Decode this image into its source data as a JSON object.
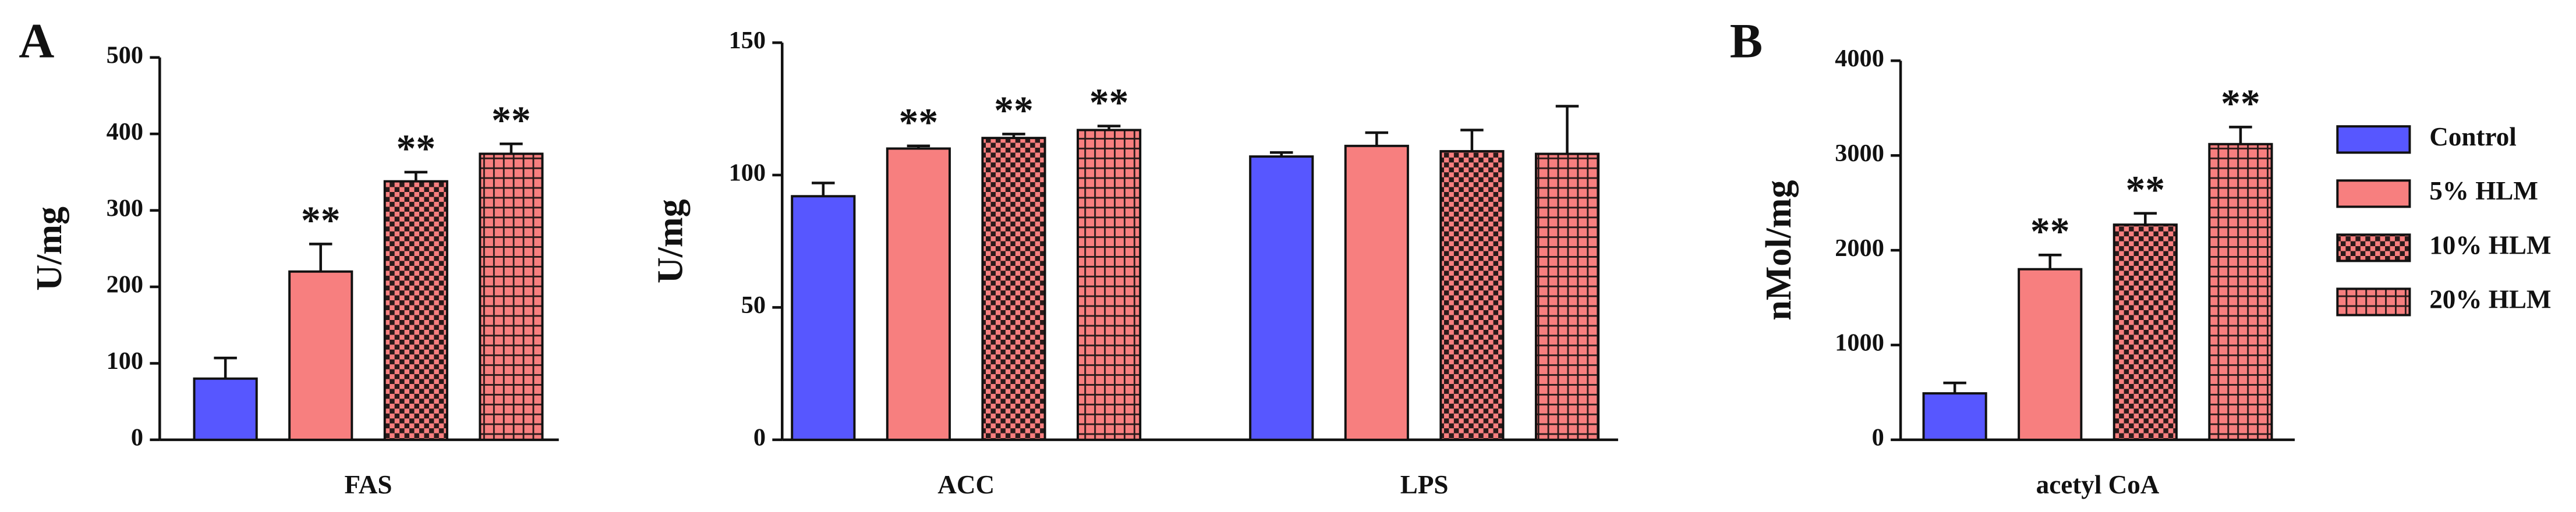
{
  "chart_data": [
    {
      "type": "bar",
      "panel_label": "A",
      "ylabel": "U/mg",
      "categories": [
        "FAS"
      ],
      "ylim": [
        0,
        500
      ],
      "yticks": [
        0,
        100,
        200,
        300,
        400,
        500
      ],
      "series": [
        {
          "color": "#5757ff",
          "pattern": "solid",
          "values": [
            80
          ],
          "errors": [
            27
          ],
          "significance": [
            null
          ]
        },
        {
          "color": "#f77f7f",
          "pattern": "solid",
          "values": [
            220
          ],
          "errors": [
            36
          ],
          "significance": [
            "**"
          ]
        },
        {
          "color": "#f77f7f",
          "pattern": "checker",
          "values": [
            338
          ],
          "errors": [
            12
          ],
          "significance": [
            "**"
          ]
        },
        {
          "color": "#f77f7f",
          "pattern": "grid",
          "values": [
            374
          ],
          "errors": [
            13
          ],
          "significance": [
            "**"
          ]
        }
      ]
    },
    {
      "type": "bar",
      "ylabel": "U/mg",
      "categories": [
        "ACC",
        "LPS"
      ],
      "ylim": [
        0,
        150
      ],
      "yticks": [
        0,
        50,
        100,
        150
      ],
      "series": [
        {
          "color": "#5757ff",
          "pattern": "solid",
          "values": [
            92,
            107
          ],
          "errors": [
            5,
            1.5
          ],
          "significance": [
            null,
            null
          ]
        },
        {
          "color": "#f77f7f",
          "pattern": "solid",
          "values": [
            110,
            111
          ],
          "errors": [
            1,
            5
          ],
          "significance": [
            "**",
            null
          ]
        },
        {
          "color": "#f77f7f",
          "pattern": "checker",
          "values": [
            114,
            109
          ],
          "errors": [
            1.5,
            8
          ],
          "significance": [
            "**",
            null
          ]
        },
        {
          "color": "#f77f7f",
          "pattern": "grid",
          "values": [
            117,
            108
          ],
          "errors": [
            1.5,
            18
          ],
          "significance": [
            "**",
            null
          ]
        }
      ]
    },
    {
      "type": "bar",
      "panel_label": "B",
      "ylabel": "nMol/mg",
      "categories": [
        "acetyl CoA"
      ],
      "ylim": [
        0,
        4000
      ],
      "yticks": [
        0,
        1000,
        2000,
        3000,
        4000
      ],
      "legend": "right",
      "series": [
        {
          "name": "Control",
          "color": "#5757ff",
          "pattern": "solid",
          "values": [
            490
          ],
          "errors": [
            110
          ],
          "significance": [
            null
          ]
        },
        {
          "name": "5% HLM",
          "color": "#f77f7f",
          "pattern": "solid",
          "values": [
            1800
          ],
          "errors": [
            150
          ],
          "significance": [
            "**"
          ]
        },
        {
          "name": "10% HLM",
          "color": "#f77f7f",
          "pattern": "checker",
          "values": [
            2270
          ],
          "errors": [
            120
          ],
          "significance": [
            "**"
          ]
        },
        {
          "name": "20% HLM",
          "color": "#f77f7f",
          "pattern": "grid",
          "values": [
            3120
          ],
          "errors": [
            180
          ],
          "significance": [
            "**"
          ]
        }
      ]
    }
  ]
}
